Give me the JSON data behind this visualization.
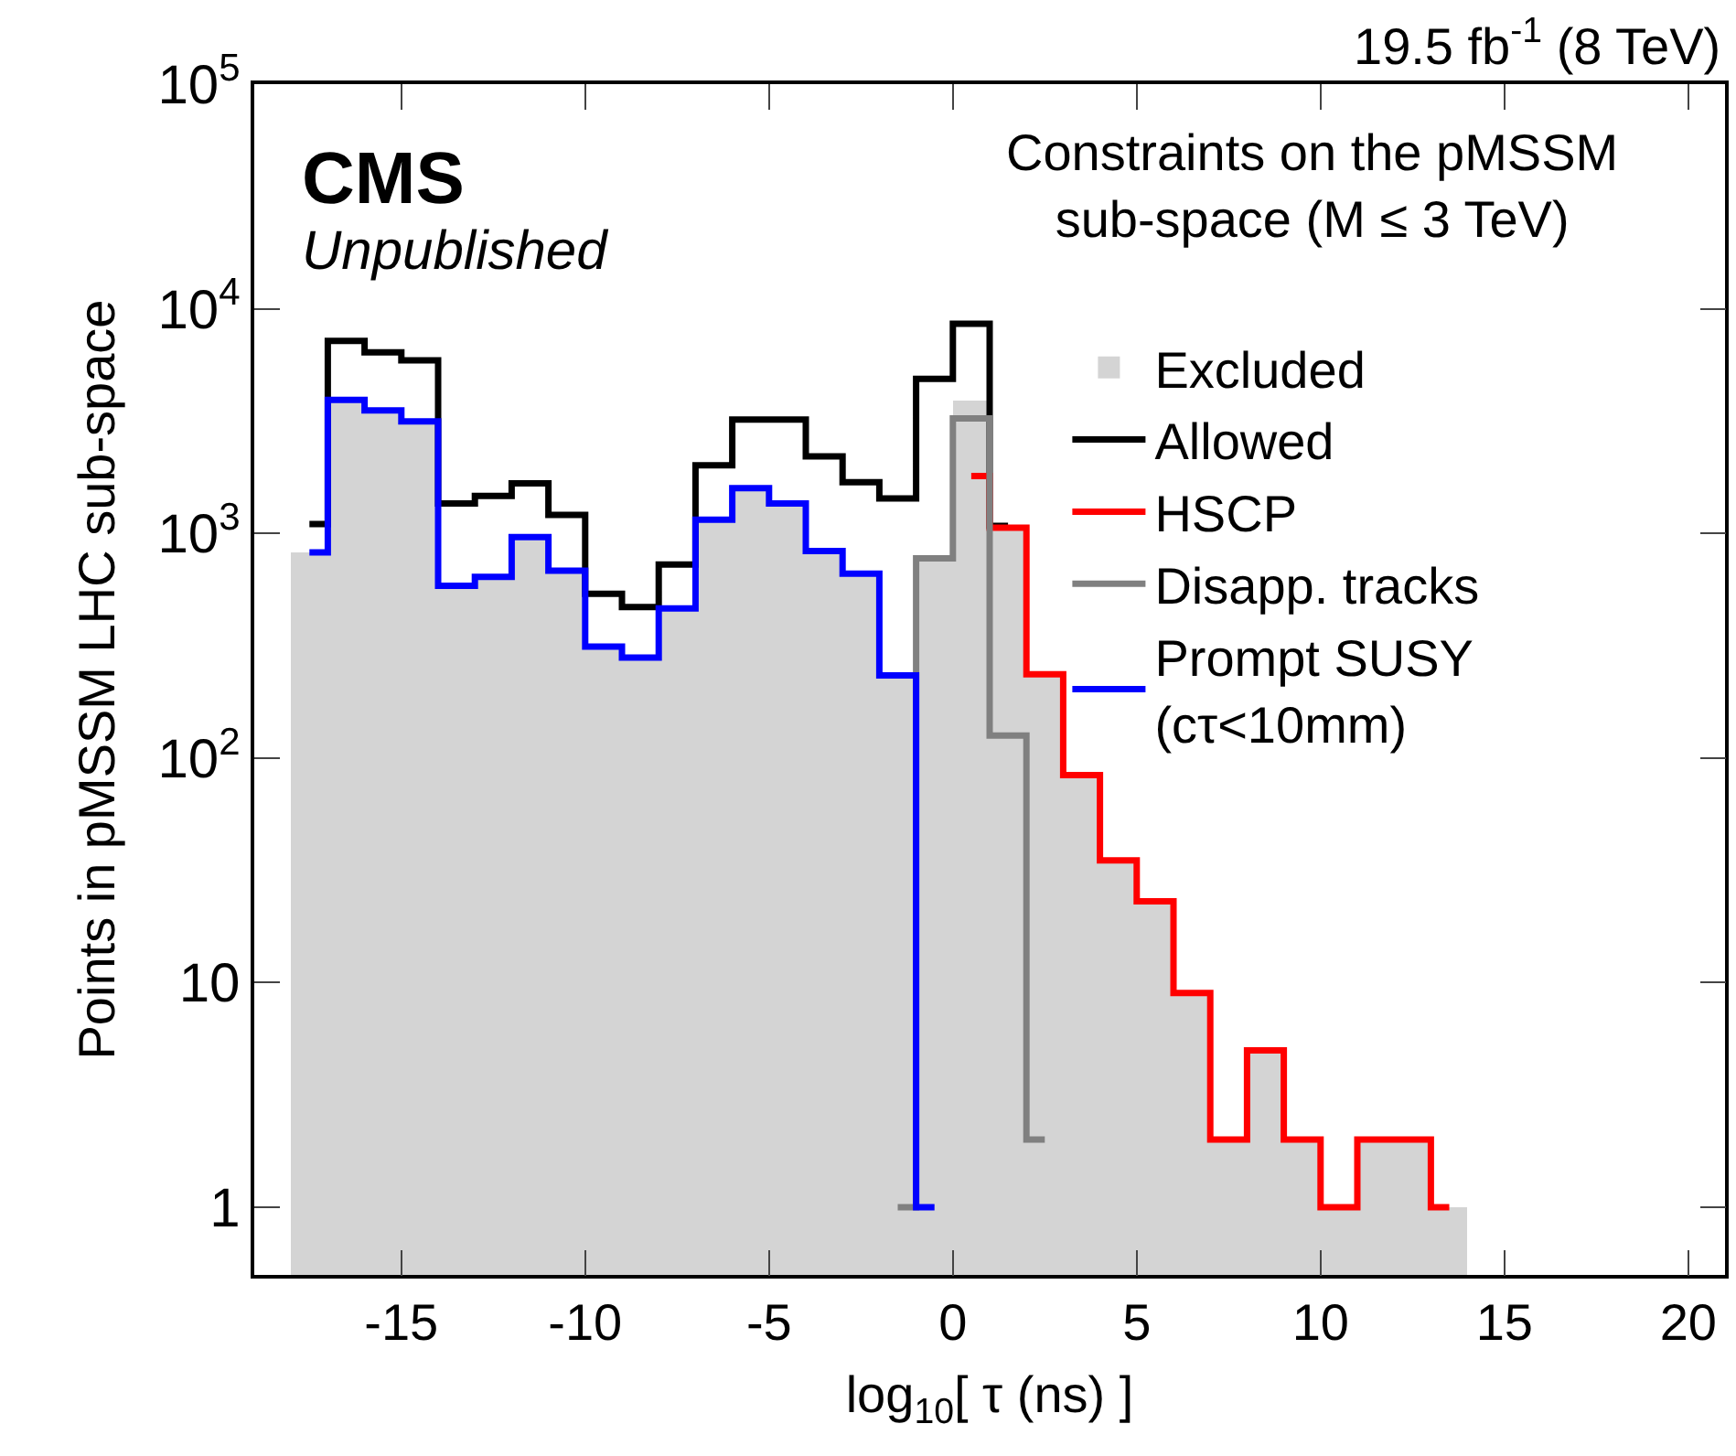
{
  "chart_data": {
    "type": "histogram",
    "xlabel": "log$_{10}$[ τ (ns) ]",
    "ylabel": "Points in pMSSM LHC sub-space",
    "annotations": [
      "CMS",
      "Unpublished",
      "Constraints on the pMSSM\nsub-space (M ≤ 3 TeV)",
      "19.5 fb$^{-1}$ (8 TeV)"
    ],
    "bins": [
      -18,
      -17,
      -16,
      -15,
      -14,
      -13,
      -12,
      -11,
      -10,
      -9,
      -8,
      -7,
      -6,
      -5,
      -4,
      -3,
      -2,
      -1,
      0,
      1,
      2,
      3,
      4,
      5,
      6,
      7,
      8,
      9,
      10,
      11,
      12,
      13,
      14
    ],
    "series": [
      {
        "name": "Allowed",
        "type": "step",
        "color": "#000000",
        "x": [
          -17.5,
          -16.5,
          -15.5,
          -14.5,
          -13.5,
          -12.5,
          -11.5,
          -10.5,
          -9.5,
          -8.5,
          -7.5,
          -6.5,
          -5.5,
          -4.5,
          -3.5,
          -2.5,
          -1.5,
          -0.5,
          0.5,
          1.5
        ],
        "values": [
          1100,
          7200,
          6400,
          5900,
          1360,
          1470,
          1670,
          1210,
          538,
          470,
          727,
          2010,
          3210,
          3210,
          2200,
          1690,
          1430,
          4880,
          8570,
          1080
        ]
      },
      {
        "name": "Excluded",
        "color": "#d4d4d4",
        "values": [
          823,
          3930,
          3530,
          3150,
          584,
          641,
          963,
          682,
          313,
          280,
          464,
          1150,
          1590,
          1360,
          834,
          662,
          233,
          774,
          3870,
          1060,
          236,
          84,
          35,
          23,
          9,
          2,
          5,
          2,
          1,
          2,
          2,
          1
        ]
      },
      {
        "name": "HSCP",
        "type": "step",
        "color": "#ff0000",
        "x": [
          0.5,
          1.5,
          2.5,
          3.5,
          4.5,
          5.5,
          6.5,
          7.5,
          8.5,
          9.5,
          10.5,
          11.5,
          12.5,
          13.5
        ],
        "values": [
          1800,
          1060,
          236,
          84,
          35,
          23,
          9,
          2,
          5,
          2,
          1,
          2,
          2,
          1
        ]
      },
      {
        "name": "Disapp. tracks",
        "type": "step",
        "color": "#808080",
        "x": [
          -1.5,
          -0.5,
          0.5,
          1.5,
          2.5
        ],
        "values": [
          1,
          774,
          3250,
          126,
          2
        ]
      },
      {
        "name": "Prompt SUSY\n(cτ<10mm)",
        "type": "step",
        "color": "#0000ff",
        "x": [
          -17.5,
          -16.5,
          -15.5,
          -14.5,
          -13.5,
          -12.5,
          -11.5,
          -10.5,
          -9.5,
          -8.5,
          -7.5,
          -6.5,
          -5.5,
          -4.5,
          -3.5,
          -2.5,
          -1.5,
          -0.5
        ],
        "values": [
          823,
          3930,
          3530,
          3150,
          584,
          641,
          963,
          682,
          313,
          280,
          464,
          1150,
          1590,
          1360,
          834,
          662,
          233,
          1
        ]
      }
    ],
    "xlim": [
      -19,
      21
    ],
    "xticks": [
      -15,
      -10,
      -5,
      0,
      5,
      10,
      15,
      20
    ],
    "log": "y",
    "ylim": [
      0.5,
      100000
    ],
    "yticks": [
      1,
      10,
      {
        "value": 100,
        "label": "10$^{2}$"
      },
      {
        "value": 1000,
        "label": "10$^{3}$"
      },
      {
        "value": 10000,
        "label": "10$^{4}$"
      },
      {
        "value": 100000,
        "label": "10$^{5}$"
      }
    ],
    "legend": "top right"
  }
}
